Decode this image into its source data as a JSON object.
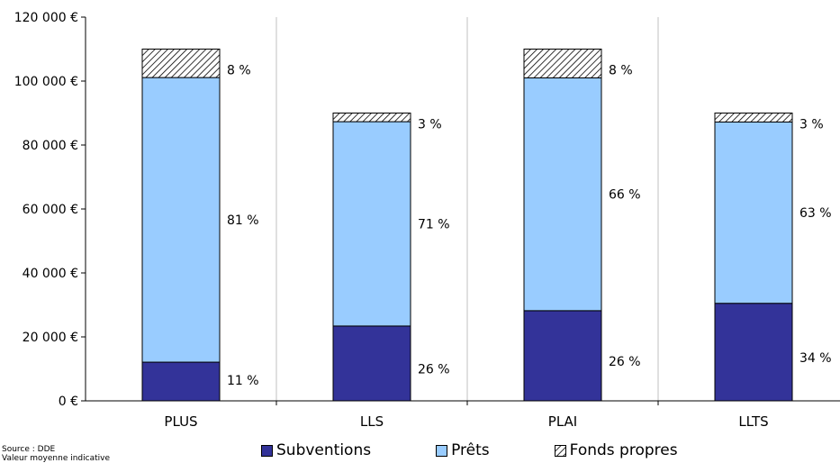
{
  "chart_data": {
    "type": "bar",
    "stacked": true,
    "categories": [
      "PLUS",
      "LLS",
      "PLAI",
      "LLTS"
    ],
    "y_ticks": [
      "0 €",
      "20 000 €",
      "40 000 €",
      "60 000 €",
      "80 000 €",
      "100 000 €",
      "120 000 €"
    ],
    "ylim": [
      0,
      120000
    ],
    "grid": "vertical-between-categories",
    "legend_position": "bottom",
    "series": [
      {
        "name": "Subventions",
        "color": "#333399",
        "pattern": "solid",
        "values": [
          12100,
          23400,
          28200,
          30500
        ],
        "labels": [
          "11 %",
          "26 %",
          "26 %",
          "34 %"
        ]
      },
      {
        "name": "Prêts",
        "color": "#99CCFF",
        "pattern": "solid",
        "values": [
          89000,
          63900,
          72800,
          56700
        ],
        "labels": [
          "81 %",
          "71 %",
          "66 %",
          "63 %"
        ]
      },
      {
        "name": "Fonds propres",
        "color": "#ffffff",
        "pattern": "hatch",
        "values": [
          8900,
          2700,
          9000,
          2800
        ],
        "labels": [
          "8 %",
          "3 %",
          "8 %",
          "3 %"
        ]
      }
    ]
  },
  "source_lines": [
    "Source :  DDE",
    "Valeur moyenne indicative"
  ]
}
